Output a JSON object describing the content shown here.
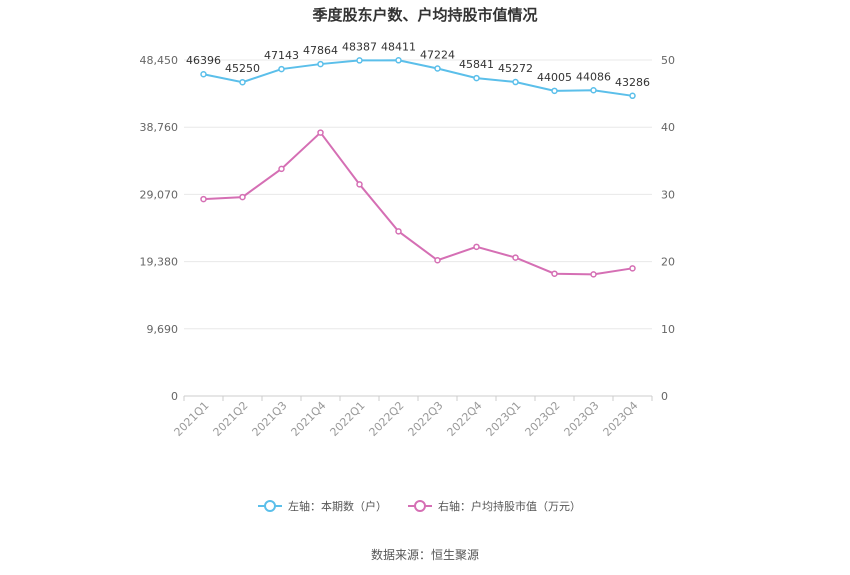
{
  "chart_data": {
    "type": "line",
    "title": "季度股东户数、户均持股市值情况",
    "categories": [
      "2021Q1",
      "2021Q2",
      "2021Q3",
      "2021Q4",
      "2022Q1",
      "2022Q2",
      "2022Q3",
      "2022Q4",
      "2023Q1",
      "2023Q2",
      "2023Q3",
      "2023Q4"
    ],
    "left_axis": {
      "ticks": [
        "0",
        "9,690",
        "19,380",
        "29,070",
        "38,760",
        "48,450"
      ],
      "min": 0,
      "max": 48450
    },
    "right_axis": {
      "ticks": [
        "0",
        "10",
        "20",
        "30",
        "40",
        "50"
      ],
      "min": 0,
      "max": 50
    },
    "grid": true,
    "legend_position": "bottom",
    "series": [
      {
        "name": "左轴：本期数（户）",
        "axis": "left",
        "color": "#5bbfea",
        "values": [
          46396,
          45250,
          47143,
          47864,
          48387,
          48411,
          47224,
          45841,
          45272,
          44005,
          44086,
          43286
        ],
        "labels": [
          "46396",
          "45250",
          "47143",
          "47864",
          "48387",
          "48411",
          "47224",
          "45841",
          "45272",
          "44005",
          "44086",
          "43286"
        ]
      },
      {
        "name": "右轴：户均持股市值（万元）",
        "axis": "right",
        "color": "#d56fb4",
        "values": [
          29.3,
          29.6,
          33.8,
          39.2,
          31.5,
          24.5,
          20.2,
          22.2,
          20.6,
          18.2,
          18.1,
          19.0
        ]
      }
    ],
    "source": "数据来源：恒生聚源"
  }
}
